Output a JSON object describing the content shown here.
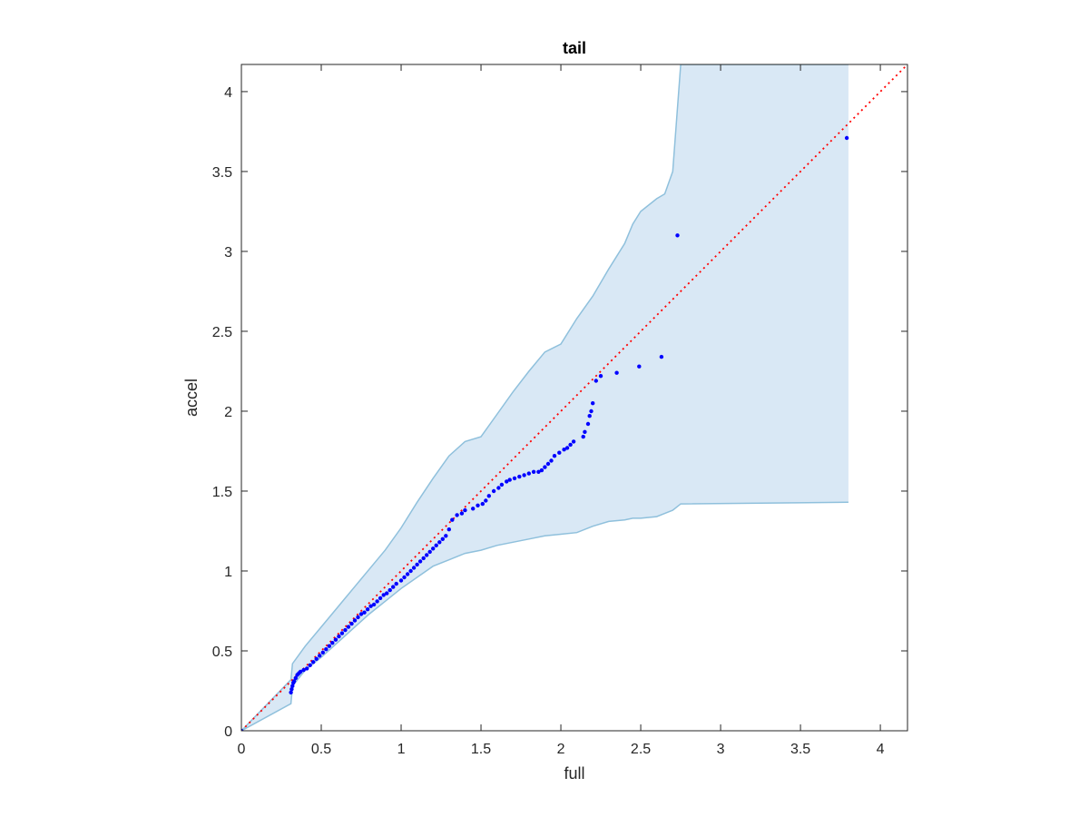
{
  "chart_data": {
    "type": "scatter",
    "title": "tail",
    "xlabel": "full",
    "ylabel": "accel",
    "xlim": [
      0,
      4.17
    ],
    "ylim": [
      0,
      4.17
    ],
    "xticks": [
      "0",
      "0.5",
      "1",
      "1.5",
      "2",
      "2.5",
      "3",
      "3.5",
      "4"
    ],
    "yticks": [
      "0",
      "0.5",
      "1",
      "1.5",
      "2",
      "2.5",
      "3",
      "3.5",
      "4"
    ],
    "grid": false,
    "legend": "none",
    "colors": {
      "points": "#0000ff",
      "reference_line": "#ff0000",
      "band_fill": "#d9e8f5",
      "band_edge": "#8fc0dc",
      "axes": "#262626"
    },
    "reference_line": {
      "x": [
        0,
        4.17
      ],
      "y": [
        0,
        4.17
      ]
    },
    "band": {
      "x": [
        0,
        0.31,
        0.32,
        0.4,
        0.5,
        0.6,
        0.7,
        0.8,
        0.9,
        1.0,
        1.1,
        1.2,
        1.3,
        1.4,
        1.5,
        1.6,
        1.7,
        1.8,
        1.9,
        2.0,
        2.1,
        2.2,
        2.3,
        2.4,
        2.45,
        2.5,
        2.6,
        2.65,
        2.7,
        2.75,
        3.8
      ],
      "upper": [
        0,
        0.32,
        0.42,
        0.53,
        0.65,
        0.77,
        0.89,
        1.01,
        1.13,
        1.27,
        1.43,
        1.58,
        1.72,
        1.81,
        1.84,
        1.98,
        2.12,
        2.25,
        2.37,
        2.42,
        2.58,
        2.72,
        2.89,
        3.05,
        3.17,
        3.25,
        3.33,
        3.36,
        3.5,
        4.17,
        4.17
      ],
      "lower": [
        0,
        0.17,
        0.28,
        0.38,
        0.46,
        0.55,
        0.64,
        0.73,
        0.81,
        0.89,
        0.96,
        1.03,
        1.07,
        1.11,
        1.13,
        1.16,
        1.18,
        1.2,
        1.22,
        1.23,
        1.24,
        1.28,
        1.31,
        1.32,
        1.33,
        1.33,
        1.34,
        1.36,
        1.38,
        1.42,
        1.43
      ]
    },
    "series": [
      {
        "x": [
          0,
          0.31,
          0.315,
          0.32,
          0.325,
          0.33,
          0.34,
          0.35,
          0.36,
          0.37,
          0.39,
          0.41,
          0.43,
          0.45,
          0.47,
          0.49,
          0.51,
          0.53,
          0.55,
          0.57,
          0.59,
          0.61,
          0.63,
          0.65,
          0.67,
          0.69,
          0.71,
          0.73,
          0.75,
          0.77,
          0.79,
          0.81,
          0.83,
          0.85,
          0.87,
          0.89,
          0.91,
          0.93,
          0.95,
          0.97,
          1.0,
          1.02,
          1.04,
          1.06,
          1.08,
          1.1,
          1.12,
          1.14,
          1.16,
          1.18,
          1.2,
          1.22,
          1.24,
          1.26,
          1.28,
          1.3,
          1.32,
          1.35,
          1.38,
          1.4,
          1.45,
          1.48,
          1.51,
          1.53,
          1.55,
          1.58,
          1.61,
          1.63,
          1.66,
          1.68,
          1.71,
          1.74,
          1.77,
          1.8,
          1.83,
          1.86,
          1.88,
          1.9,
          1.92,
          1.94,
          1.96,
          1.99,
          2.02,
          2.04,
          2.06,
          2.08,
          2.14,
          2.15,
          2.17,
          2.18,
          2.19,
          2.2,
          2.22,
          2.25,
          2.35,
          2.49,
          2.63,
          2.73,
          3.79
        ],
        "y": [
          0.0,
          0.24,
          0.26,
          0.28,
          0.3,
          0.31,
          0.33,
          0.35,
          0.36,
          0.37,
          0.38,
          0.39,
          0.41,
          0.43,
          0.45,
          0.47,
          0.49,
          0.51,
          0.53,
          0.55,
          0.57,
          0.59,
          0.61,
          0.63,
          0.65,
          0.67,
          0.69,
          0.71,
          0.73,
          0.74,
          0.76,
          0.78,
          0.79,
          0.81,
          0.83,
          0.85,
          0.86,
          0.88,
          0.9,
          0.92,
          0.94,
          0.96,
          0.98,
          1.0,
          1.02,
          1.04,
          1.06,
          1.08,
          1.1,
          1.12,
          1.14,
          1.16,
          1.18,
          1.2,
          1.22,
          1.26,
          1.32,
          1.35,
          1.36,
          1.38,
          1.39,
          1.41,
          1.42,
          1.44,
          1.47,
          1.5,
          1.52,
          1.54,
          1.56,
          1.57,
          1.58,
          1.59,
          1.6,
          1.61,
          1.62,
          1.62,
          1.63,
          1.65,
          1.67,
          1.69,
          1.72,
          1.74,
          1.76,
          1.77,
          1.79,
          1.81,
          1.84,
          1.87,
          1.92,
          1.97,
          2.0,
          2.05,
          2.19,
          2.22,
          2.24,
          2.28,
          2.34,
          3.1,
          3.71
        ]
      }
    ]
  }
}
